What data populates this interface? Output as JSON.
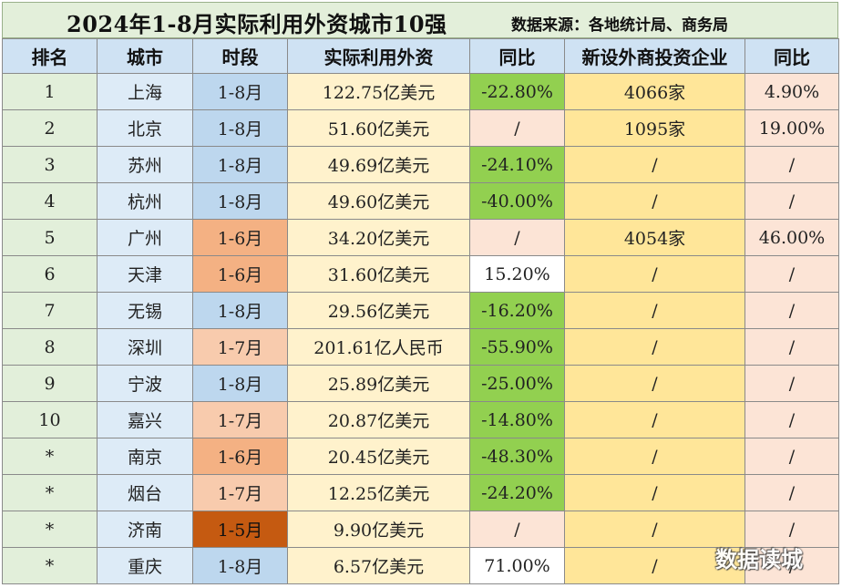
{
  "title": "2024年1-8月实际利用外资城市10强",
  "source": "数据来源：各地统计局、商务局",
  "watermark": "数据读城",
  "headers": [
    "排名",
    "城市",
    "时段",
    "实际利用外资",
    "同比",
    "新设外商投资企业",
    "同比"
  ],
  "rows": [
    {
      "rank": "1",
      "city": "上海",
      "period": "1-8月",
      "fdi": "122.75亿美元",
      "yoy": "-22.80%",
      "newco": "4066家",
      "newco_yoy": "4.90%"
    },
    {
      "rank": "2",
      "city": "北京",
      "period": "1-8月",
      "fdi": "51.60亿美元",
      "yoy": "/",
      "newco": "1095家",
      "newco_yoy": "19.00%"
    },
    {
      "rank": "3",
      "city": "苏州",
      "period": "1-8月",
      "fdi": "49.69亿美元",
      "yoy": "-24.10%",
      "newco": "/",
      "newco_yoy": "/"
    },
    {
      "rank": "4",
      "city": "杭州",
      "period": "1-8月",
      "fdi": "49.60亿美元",
      "yoy": "-40.00%",
      "newco": "/",
      "newco_yoy": "/"
    },
    {
      "rank": "5",
      "city": "广州",
      "period": "1-6月",
      "fdi": "34.20亿美元",
      "yoy": "/",
      "newco": "4054家",
      "newco_yoy": "46.00%"
    },
    {
      "rank": "6",
      "city": "天津",
      "period": "1-6月",
      "fdi": "31.60亿美元",
      "yoy": "15.20%",
      "newco": "/",
      "newco_yoy": "/"
    },
    {
      "rank": "7",
      "city": "无锡",
      "period": "1-8月",
      "fdi": "29.56亿美元",
      "yoy": "-16.20%",
      "newco": "/",
      "newco_yoy": "/"
    },
    {
      "rank": "8",
      "city": "深圳",
      "period": "1-7月",
      "fdi": "201.61亿人民币",
      "yoy": "-55.90%",
      "newco": "/",
      "newco_yoy": "/"
    },
    {
      "rank": "9",
      "city": "宁波",
      "period": "1-8月",
      "fdi": "25.89亿美元",
      "yoy": "-25.00%",
      "newco": "/",
      "newco_yoy": "/"
    },
    {
      "rank": "10",
      "city": "嘉兴",
      "period": "1-7月",
      "fdi": "20.87亿美元",
      "yoy": "-14.80%",
      "newco": "/",
      "newco_yoy": "/"
    },
    {
      "rank": "*",
      "city": "南京",
      "period": "1-6月",
      "fdi": "20.45亿美元",
      "yoy": "-48.30%",
      "newco": "/",
      "newco_yoy": "/"
    },
    {
      "rank": "*",
      "city": "烟台",
      "period": "1-7月",
      "fdi": "12.25亿美元",
      "yoy": "-24.20%",
      "newco": "/",
      "newco_yoy": "/"
    },
    {
      "rank": "*",
      "city": "济南",
      "period": "1-5月",
      "fdi": "9.90亿美元",
      "yoy": "/",
      "newco": "/",
      "newco_yoy": "/"
    },
    {
      "rank": "*",
      "city": "重庆",
      "period": "1-8月",
      "fdi": "6.57亿美元",
      "yoy": "71.00%",
      "newco": "/",
      "newco_yoy": "/"
    }
  ],
  "colors": {
    "title_bg": "#e3efda",
    "header_bg": "#cfe2f3",
    "period_1_8": "#bdd7ee",
    "period_1_7": "#f8cbad",
    "period_1_6": "#f4b183",
    "period_1_5": "#c55a11",
    "yoy_negative": "#92d050",
    "newco_bg": "#ffe699",
    "fdi_bg": "#fff2cc"
  }
}
